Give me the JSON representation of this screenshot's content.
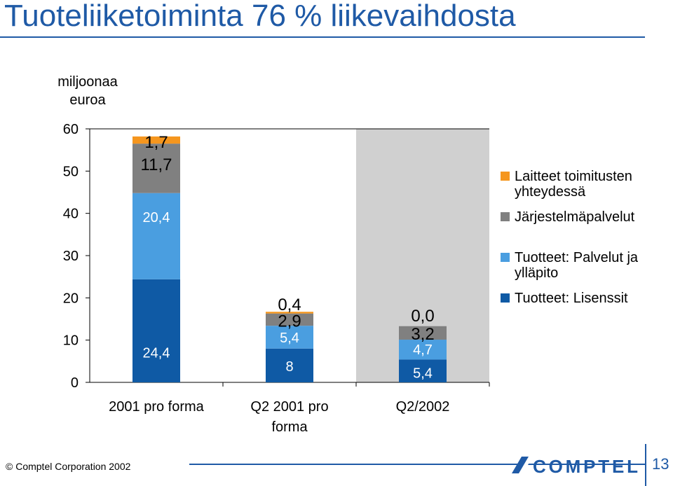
{
  "header": {
    "title": "Tuoteliiketoiminta 76 % liikevaihdosta"
  },
  "chart_data": {
    "type": "bar",
    "stacked": true,
    "ylabel": "miljoonaa euroa",
    "ylim": [
      0,
      60
    ],
    "yticks": [
      "0",
      "10",
      "20",
      "30",
      "40",
      "50",
      "60"
    ],
    "categories": [
      "2001 pro forma",
      "Q2 2001 pro forma",
      "Q2/2002"
    ],
    "highlighted_category": "Q2/2002",
    "series": [
      {
        "name": "Tuotteet: Lisenssit",
        "color": "#0f5aa5",
        "values": [
          24.4,
          8,
          5.4
        ],
        "labels": [
          "24,4",
          "8",
          "5,4"
        ]
      },
      {
        "name": "Tuotteet: Palvelut ja ylläpito",
        "color": "#4a9ee0",
        "values": [
          20.4,
          5.4,
          4.7
        ],
        "labels": [
          "20,4",
          "5,4",
          "4,7"
        ]
      },
      {
        "name": "Järjestelmäpalvelut",
        "color": "#808080",
        "values": [
          11.7,
          2.9,
          3.2
        ],
        "labels": [
          "11,7",
          "2,9",
          "3,2"
        ]
      },
      {
        "name": "Laitteet toimitusten yhteydessä",
        "color": "#f5961e",
        "values": [
          1.7,
          0.4,
          0.0
        ],
        "labels": [
          "1,7",
          "0,4",
          "0,0"
        ]
      }
    ],
    "legend_position": "right"
  },
  "footer": {
    "copyright": "© Comptel Corporation 2002",
    "logo_text": "COMPTEL",
    "page_number": "13"
  }
}
